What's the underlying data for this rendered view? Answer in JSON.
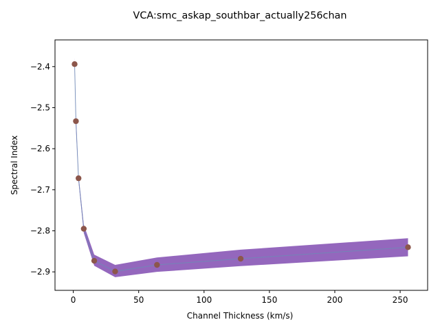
{
  "chart_data": {
    "type": "line",
    "title": "VCA:smc_askap_southbar_actually256chan",
    "xlabel": "Channel Thickness (km/s)",
    "ylabel": "Spectral Index",
    "xlim": [
      -14,
      271
    ],
    "ylim": [
      -2.945,
      -2.335
    ],
    "x_ticks": [
      0,
      50,
      100,
      150,
      200,
      250
    ],
    "y_ticks": [
      -2.4,
      -2.5,
      -2.6,
      -2.7,
      -2.8,
      -2.9
    ],
    "grid": false,
    "legend": "none",
    "series": [
      {
        "x": [
          1,
          2,
          4,
          8,
          16,
          32,
          64,
          128,
          256
        ],
        "y": [
          -2.394,
          -2.533,
          -2.672,
          -2.795,
          -2.873,
          -2.899,
          -2.883,
          -2.868,
          -2.84
        ],
        "band_lower": [
          -2.41,
          -2.55,
          -2.68,
          -2.805,
          -2.885,
          -2.913,
          -2.9,
          -2.886,
          -2.862
        ],
        "band_upper": [
          -2.378,
          -2.516,
          -2.664,
          -2.785,
          -2.858,
          -2.883,
          -2.865,
          -2.846,
          -2.818
        ]
      }
    ],
    "colors": {
      "band": "#9467bd",
      "line": "#6a8db5",
      "marker": "#8c564b"
    }
  }
}
